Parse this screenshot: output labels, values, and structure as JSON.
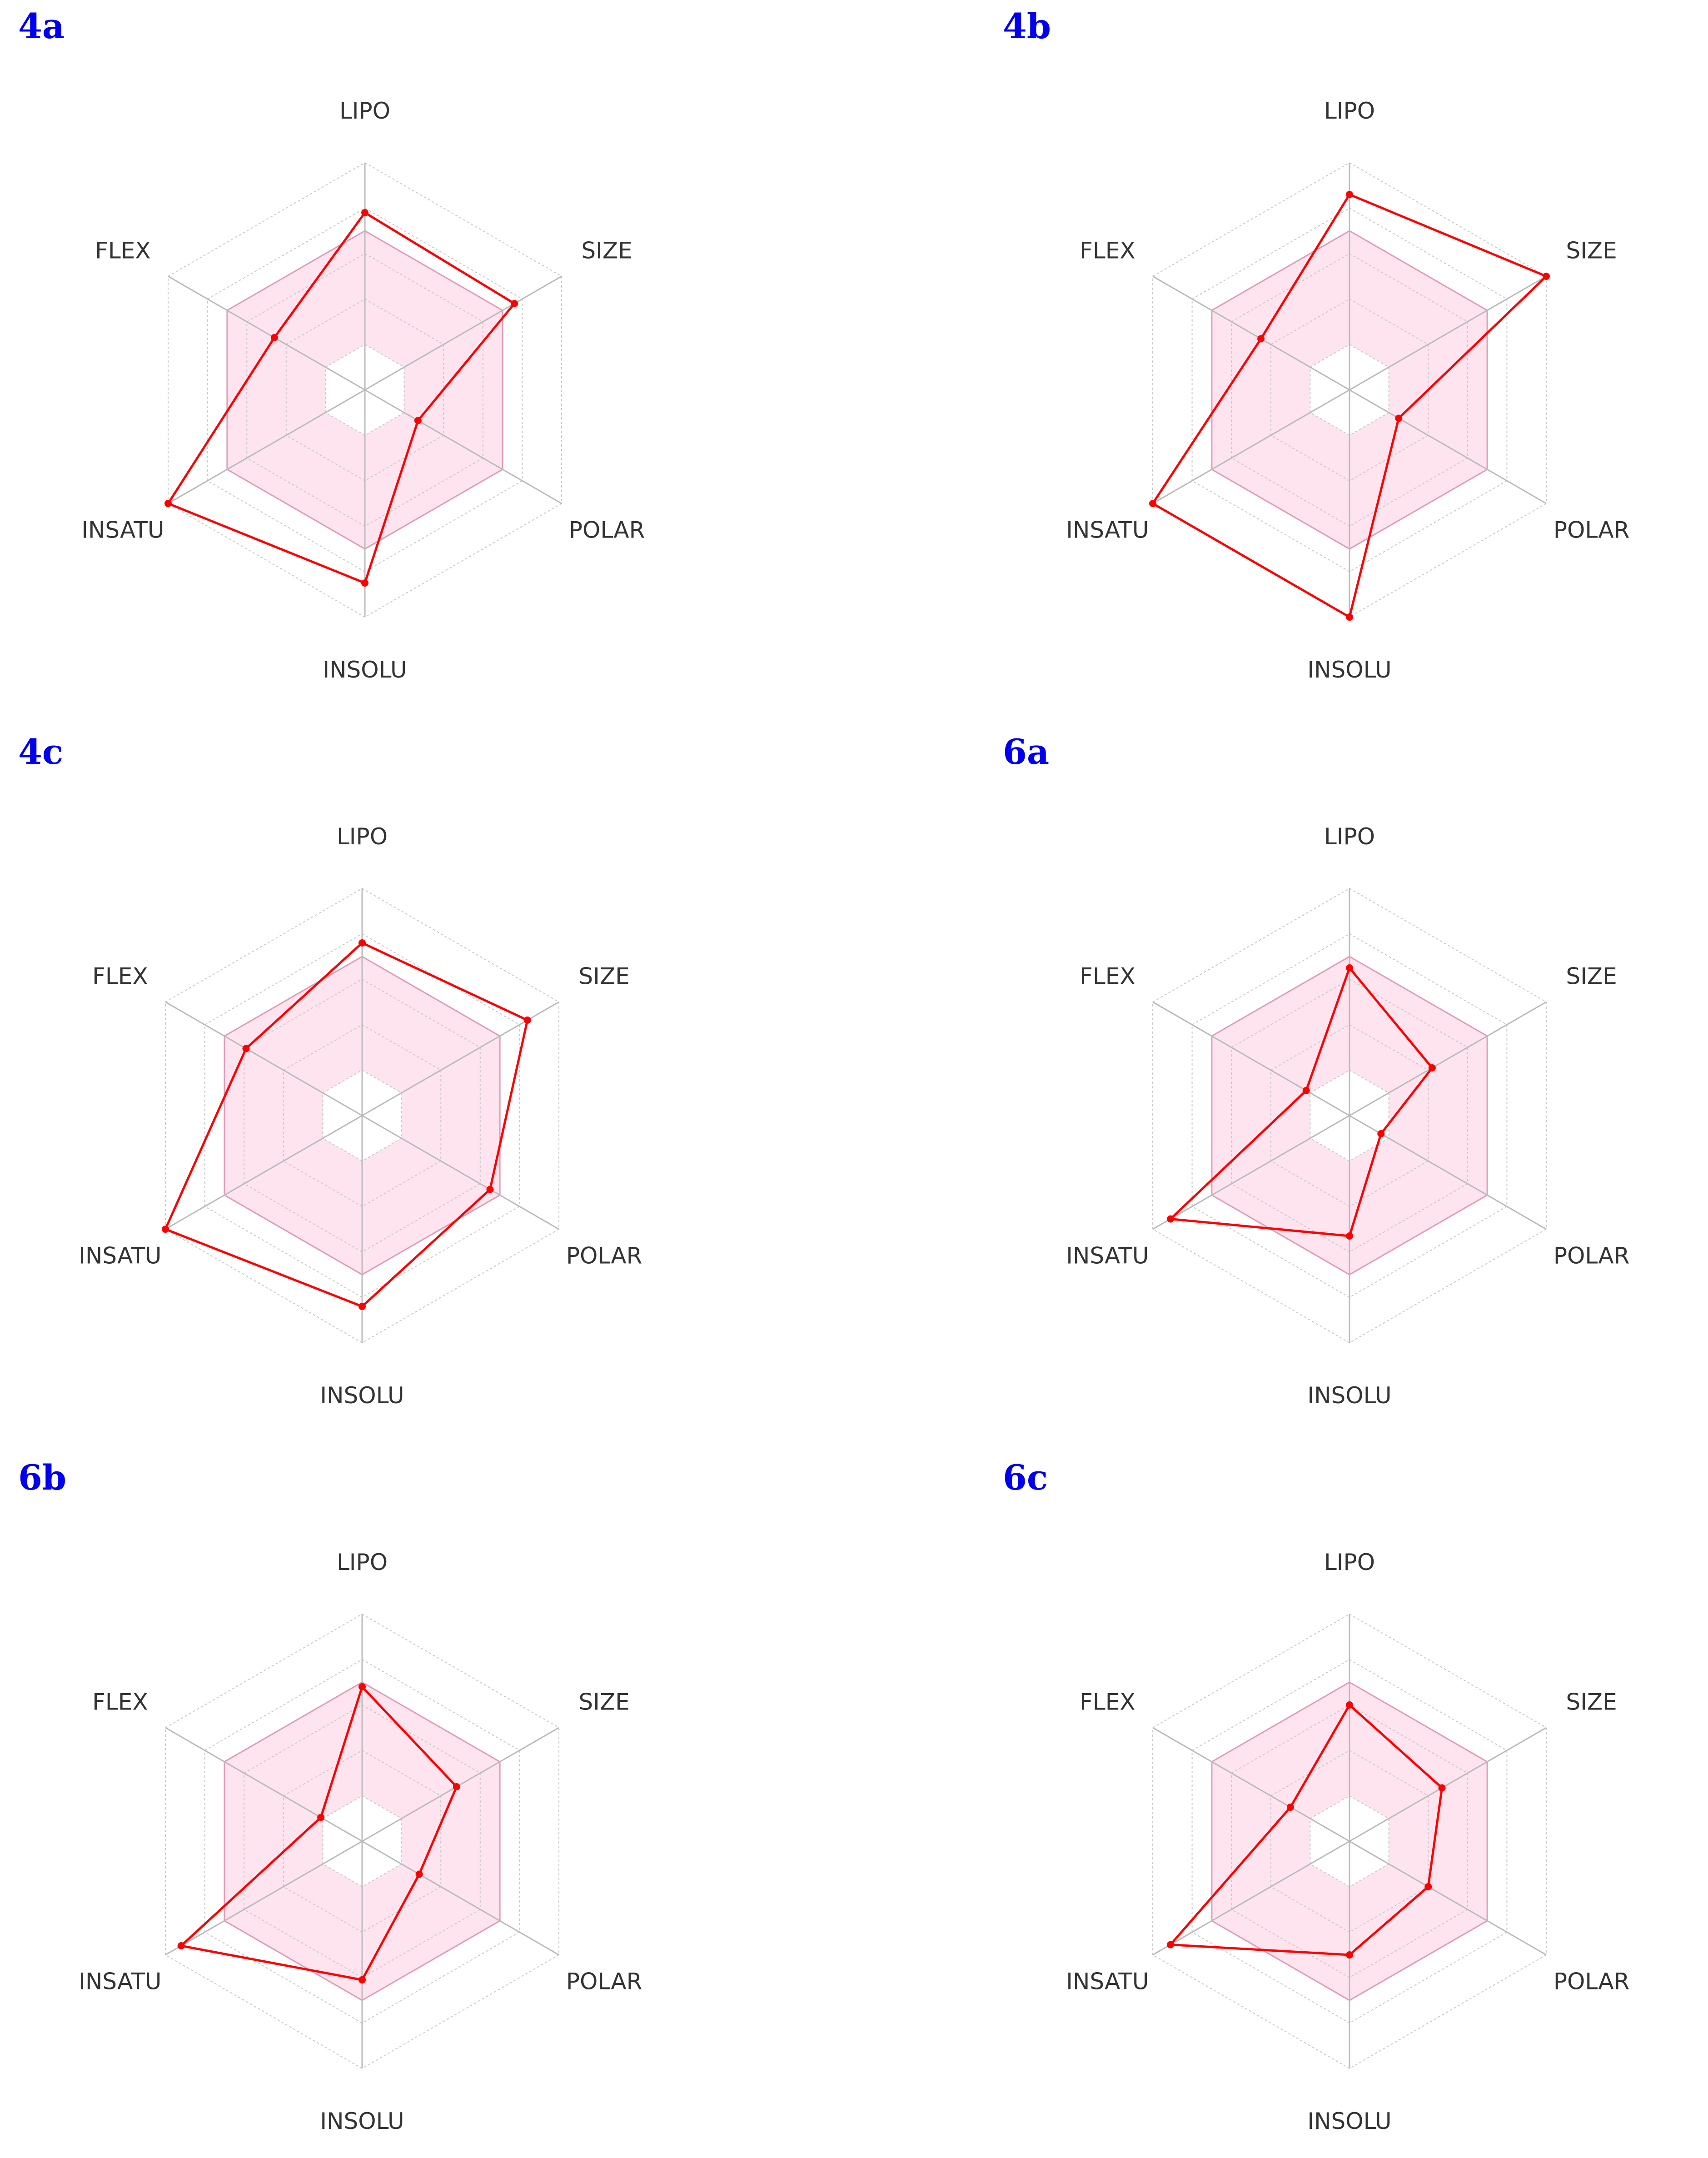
{
  "colors": {
    "panel_label": "#0000ee",
    "series_line": "#ff0000",
    "optimal_fill": "#fde4ee",
    "optimal_stroke": "#e39ab8",
    "spoke": "#bbbbbb",
    "grid": "#c8c8c8"
  },
  "axes": [
    "LIPO",
    "SIZE",
    "POLAR",
    "INSOLU",
    "INSATU",
    "FLEX"
  ],
  "chart_data": [
    {
      "type": "radar",
      "panel": "4a",
      "axes": [
        "LIPO",
        "SIZE",
        "POLAR",
        "INSOLU",
        "INSATU",
        "FLEX"
      ],
      "rlim": [
        0,
        1
      ],
      "optimal_range": [
        0.2,
        0.7
      ],
      "values": [
        0.78,
        0.76,
        0.27,
        0.85,
        1.0,
        0.46
      ]
    },
    {
      "type": "radar",
      "panel": "4b",
      "axes": [
        "LIPO",
        "SIZE",
        "POLAR",
        "INSOLU",
        "INSATU",
        "FLEX"
      ],
      "rlim": [
        0,
        1
      ],
      "optimal_range": [
        0.2,
        0.7
      ],
      "values": [
        0.86,
        1.0,
        0.25,
        1.0,
        1.0,
        0.45
      ]
    },
    {
      "type": "radar",
      "panel": "4c",
      "axes": [
        "LIPO",
        "SIZE",
        "POLAR",
        "INSOLU",
        "INSATU",
        "FLEX"
      ],
      "rlim": [
        0,
        1
      ],
      "optimal_range": [
        0.2,
        0.7
      ],
      "values": [
        0.76,
        0.84,
        0.65,
        0.84,
        1.0,
        0.59
      ]
    },
    {
      "type": "radar",
      "panel": "6a",
      "axes": [
        "LIPO",
        "SIZE",
        "POLAR",
        "INSOLU",
        "INSATU",
        "FLEX"
      ],
      "rlim": [
        0,
        1
      ],
      "optimal_range": [
        0.2,
        0.7
      ],
      "values": [
        0.65,
        0.42,
        0.16,
        0.53,
        0.91,
        0.22
      ]
    },
    {
      "type": "radar",
      "panel": "6b",
      "axes": [
        "LIPO",
        "SIZE",
        "POLAR",
        "INSOLU",
        "INSATU",
        "FLEX"
      ],
      "rlim": [
        0,
        1
      ],
      "optimal_range": [
        0.2,
        0.7
      ],
      "values": [
        0.68,
        0.48,
        0.29,
        0.61,
        0.92,
        0.21
      ]
    },
    {
      "type": "radar",
      "panel": "6c",
      "axes": [
        "LIPO",
        "SIZE",
        "POLAR",
        "INSOLU",
        "INSATU",
        "FLEX"
      ],
      "rlim": [
        0,
        1
      ],
      "optimal_range": [
        0.2,
        0.7
      ],
      "values": [
        0.6,
        0.47,
        0.4,
        0.5,
        0.91,
        0.3
      ]
    }
  ]
}
